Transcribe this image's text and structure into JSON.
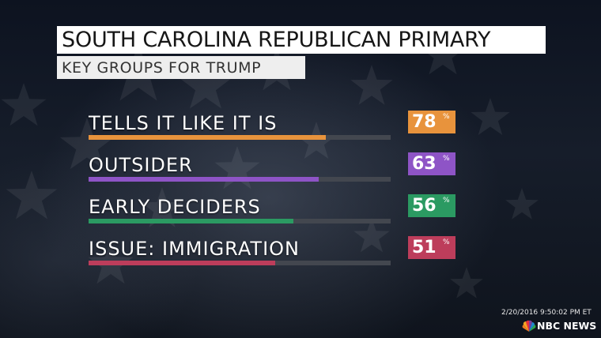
{
  "header": {
    "title": "SOUTH CAROLINA REPUBLICAN PRIMARY",
    "subtitle": "KEY GROUPS FOR TRUMP"
  },
  "chart_data": {
    "type": "bar",
    "title": "SOUTH CAROLINA REPUBLICAN PRIMARY",
    "subtitle": "KEY GROUPS FOR TRUMP",
    "categories": [
      "TELLS IT LIKE IT IS",
      "OUTSIDER",
      "EARLY DECIDERS",
      "ISSUE: IMMIGRATION"
    ],
    "values": [
      78,
      63,
      56,
      51
    ],
    "value_labels": [
      "78",
      "63",
      "56",
      "51"
    ],
    "unit": "%",
    "colors": [
      "#e8933c",
      "#8e54c6",
      "#2b9a62",
      "#bd3d5b"
    ],
    "xlim": [
      0,
      100
    ],
    "orientation": "horizontal"
  },
  "footer": {
    "timestamp": "2/20/2016 9:50:02 PM ET",
    "network": "NBC NEWS",
    "logo_icon": "nbc-peacock-icon"
  }
}
